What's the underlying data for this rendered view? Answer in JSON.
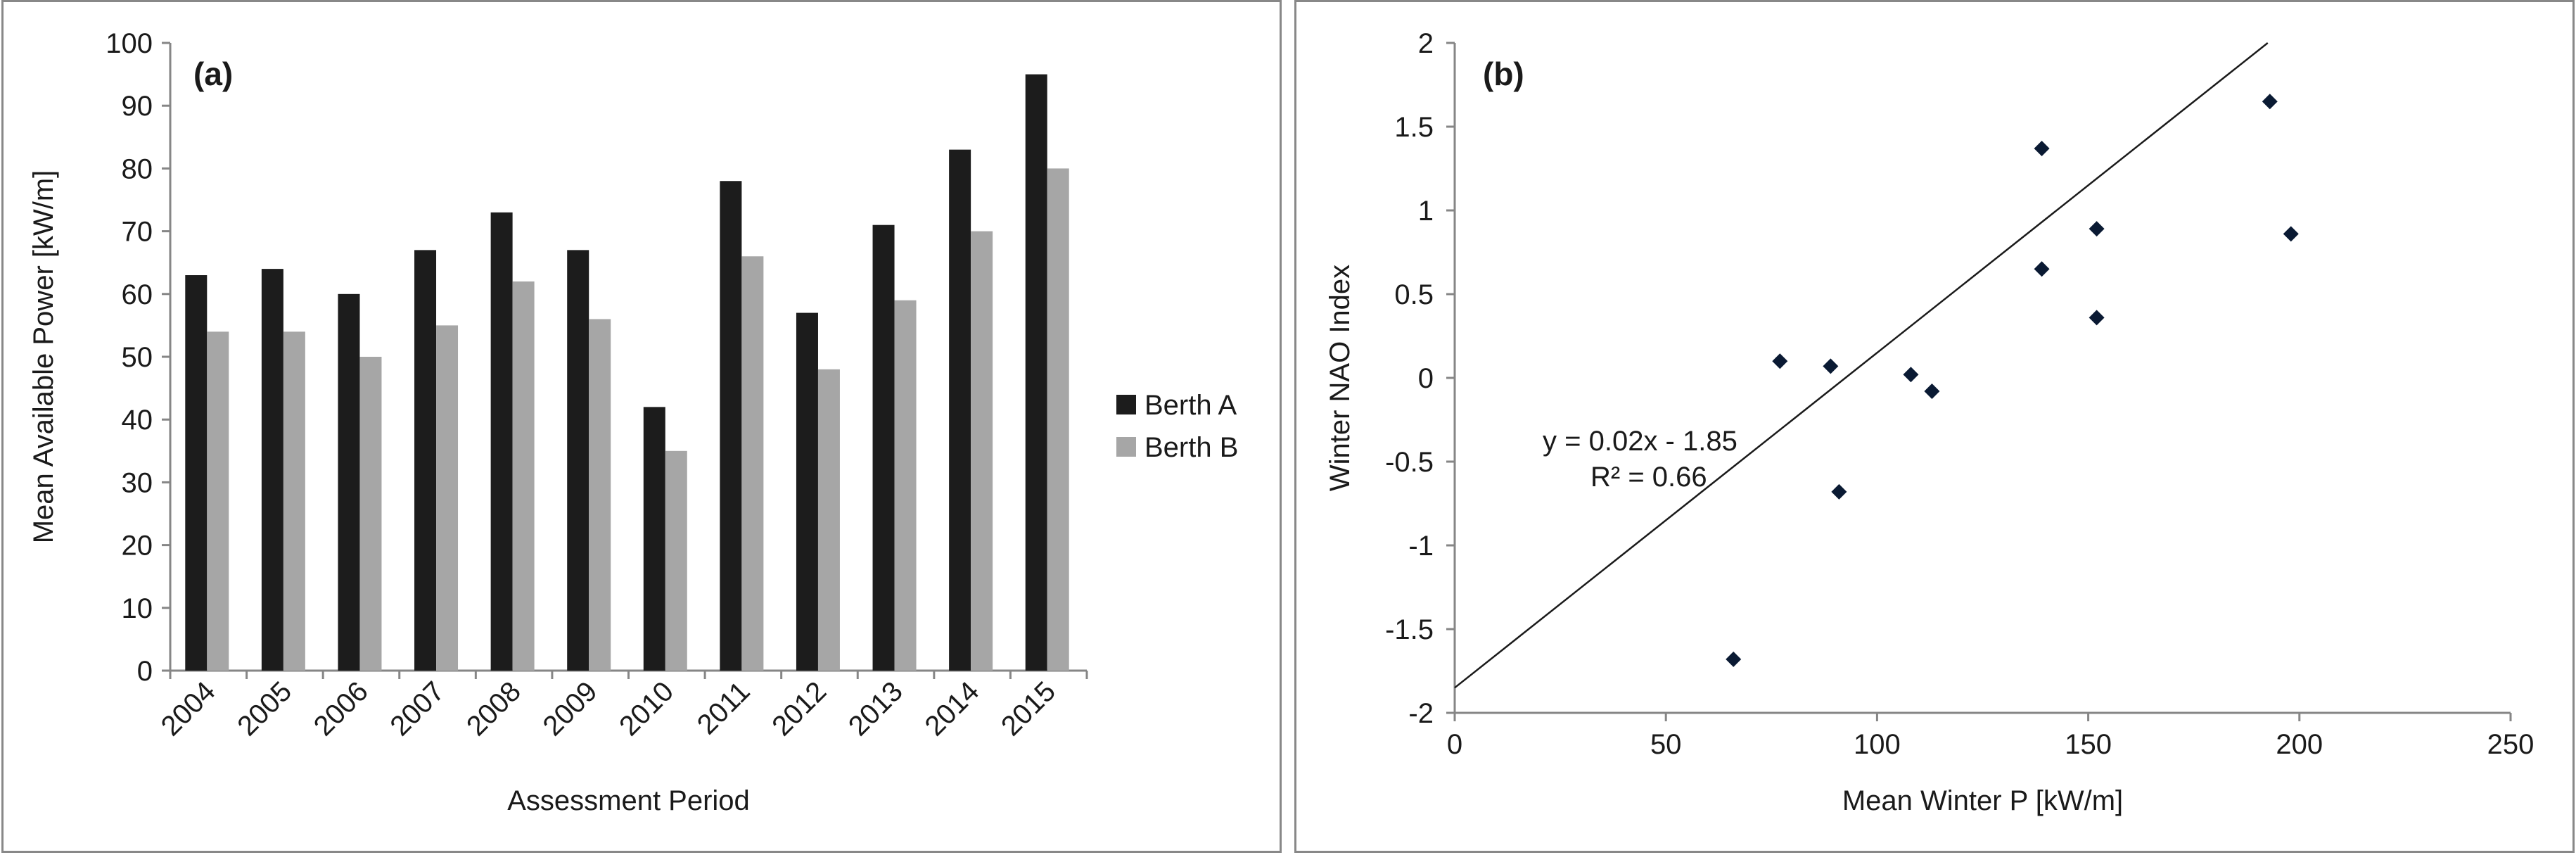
{
  "chart_data": [
    {
      "type": "bar",
      "panel_label": "(a)",
      "title": "",
      "xlabel": "Assessment Period",
      "ylabel": "Mean Available Power [kW/m]",
      "ylim": [
        0,
        100
      ],
      "yticks": [
        0,
        10,
        20,
        30,
        40,
        50,
        60,
        70,
        80,
        90,
        100
      ],
      "grid": false,
      "legend_position": "right",
      "categories": [
        "2004",
        "2005",
        "2006",
        "2007",
        "2008",
        "2009",
        "2010",
        "2011",
        "2012",
        "2013",
        "2014",
        "2015"
      ],
      "series": [
        {
          "name": "Berth A",
          "color": "#1c1c1c",
          "values": [
            63,
            64,
            60,
            67,
            73,
            67,
            42,
            78,
            57,
            71,
            83,
            95
          ]
        },
        {
          "name": "Berth B",
          "color": "#a6a6a6",
          "values": [
            54,
            54,
            50,
            55,
            62,
            56,
            35,
            66,
            48,
            59,
            70,
            80
          ]
        }
      ]
    },
    {
      "type": "scatter",
      "panel_label": "(b)",
      "title": "",
      "xlabel": "Mean Winter P [kW/m]",
      "ylabel": "Winter NAO Index",
      "xlim": [
        0,
        250
      ],
      "ylim": [
        -2,
        2
      ],
      "xticks": [
        0,
        50,
        100,
        150,
        200,
        250
      ],
      "yticks": [
        -2,
        -1.5,
        -1,
        -0.5,
        0,
        0.5,
        1,
        1.5,
        2
      ],
      "grid": false,
      "marker_color": "#0a1a33",
      "points": [
        {
          "x": 66,
          "y": -1.68
        },
        {
          "x": 77,
          "y": 0.1
        },
        {
          "x": 89,
          "y": 0.07
        },
        {
          "x": 91,
          "y": -0.68
        },
        {
          "x": 108,
          "y": 0.02
        },
        {
          "x": 113,
          "y": -0.08
        },
        {
          "x": 139,
          "y": 1.37
        },
        {
          "x": 139,
          "y": 0.65
        },
        {
          "x": 152,
          "y": 0.89
        },
        {
          "x": 152,
          "y": 0.36
        },
        {
          "x": 193,
          "y": 1.65
        },
        {
          "x": 198,
          "y": 0.86
        }
      ],
      "trendline": {
        "slope": 0.02,
        "intercept": -1.85,
        "equation_label": "y = 0.02x - 1.85",
        "r2_label": "R² = 0.66"
      }
    }
  ]
}
